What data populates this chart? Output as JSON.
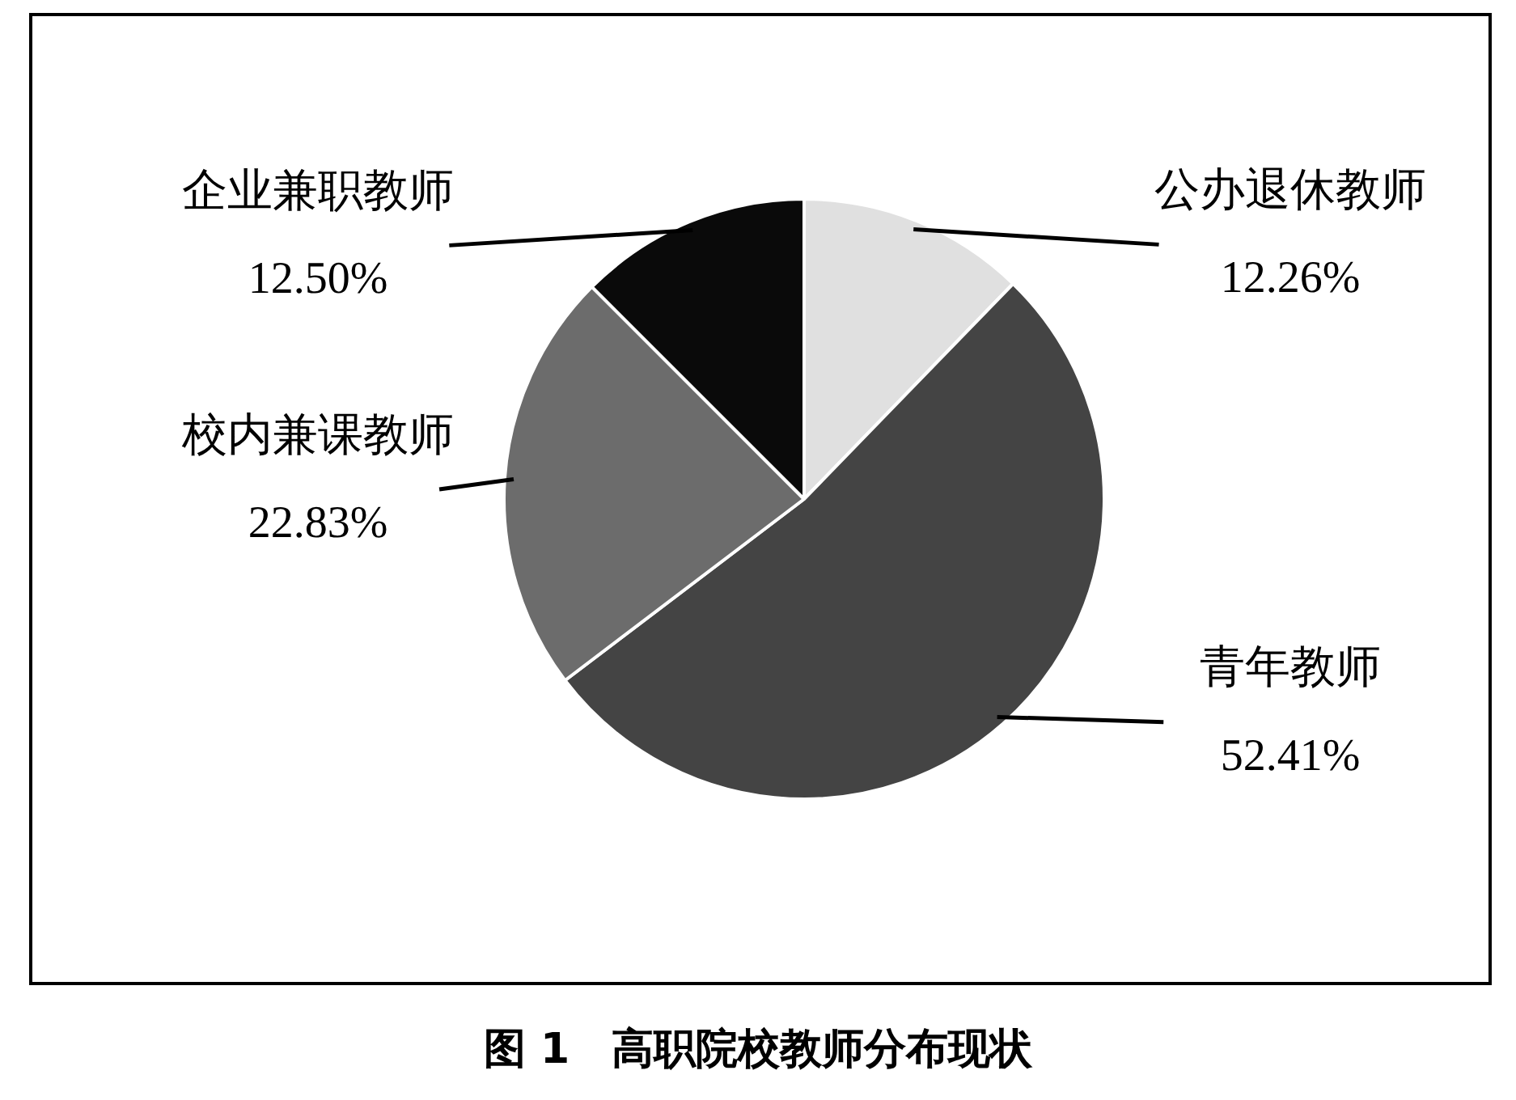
{
  "chart_data": {
    "type": "pie",
    "title": "图 1　高职院校教师分布现状",
    "categories": [
      "公办退休教师",
      "青年教师",
      "校内兼课教师",
      "企业兼职教师"
    ],
    "values": [
      12.26,
      52.41,
      22.83,
      12.5
    ],
    "value_labels": [
      "12.26%",
      "52.41%",
      "22.83%",
      "12.50%"
    ],
    "colors": [
      "#e0e0e0",
      "#444444",
      "#6c6c6c",
      "#0a0a0a"
    ],
    "legend": false
  }
}
